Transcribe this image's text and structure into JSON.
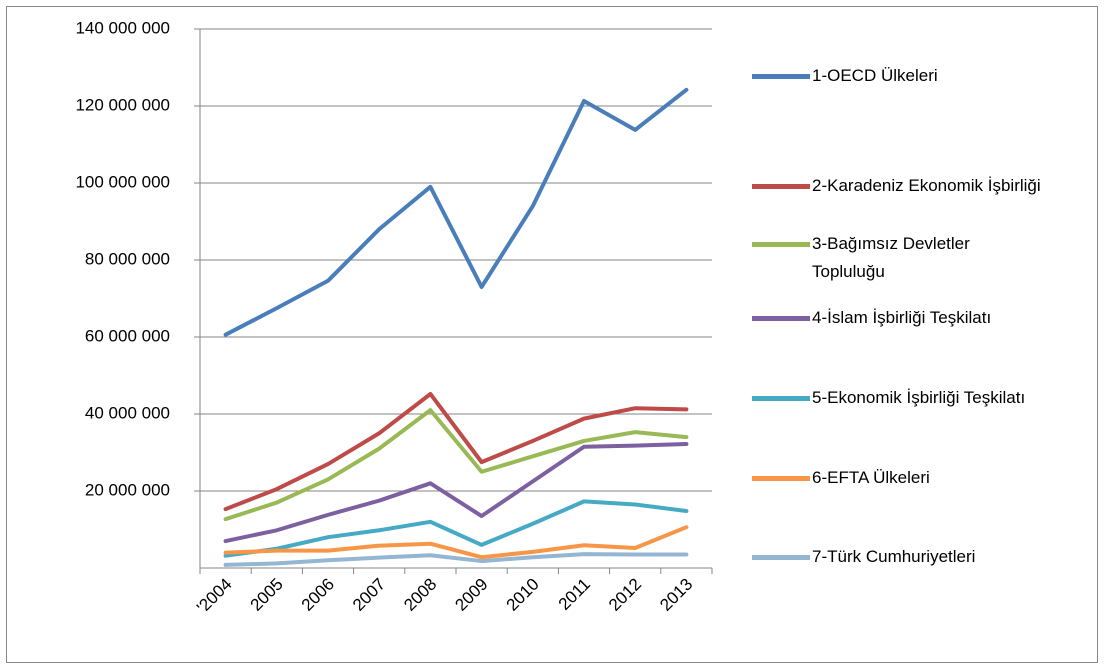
{
  "chart_data": {
    "type": "line",
    "categories": [
      "'2004",
      "2005",
      "2006",
      "2007",
      "2008",
      "2009",
      "2010",
      "2011",
      "2012",
      "2013"
    ],
    "series": [
      {
        "name": "1-OECD Ülkeleri",
        "color": "#4a7ebb",
        "values": [
          60600000,
          67500000,
          74600000,
          88000000,
          99000000,
          73000000,
          94000000,
          121300000,
          113800000,
          124200000
        ]
      },
      {
        "name": "2-Karadeniz Ekonomik İşbirliği",
        "color": "#be4b48",
        "values": [
          15300000,
          20500000,
          27000000,
          35000000,
          45200000,
          27500000,
          33000000,
          38800000,
          41500000,
          41200000
        ]
      },
      {
        "name": "3-Bağımsız Devletler Topluluğu",
        "color": "#98b954",
        "values": [
          12700000,
          17000000,
          23000000,
          31000000,
          41000000,
          25000000,
          29000000,
          33000000,
          35300000,
          34000000
        ]
      },
      {
        "name": "4-İslam İşbirliği Teşkilatı",
        "color": "#7d60a0",
        "values": [
          7000000,
          9800000,
          13800000,
          17500000,
          22000000,
          13500000,
          22500000,
          31500000,
          31800000,
          32200000
        ]
      },
      {
        "name": "5-Ekonomik İşbirliği Teşkilatı",
        "color": "#46aac5",
        "values": [
          3200000,
          5000000,
          8000000,
          9800000,
          12000000,
          6000000,
          11500000,
          17300000,
          16500000,
          14800000
        ]
      },
      {
        "name": "6-EFTA Ülkeleri",
        "color": "#f79646",
        "values": [
          4000000,
          4500000,
          4500000,
          5800000,
          6300000,
          2800000,
          4200000,
          5900000,
          5200000,
          10600000
        ]
      },
      {
        "name": "7-Türk Cumhuriyetleri",
        "color": "#94b6d2",
        "values": [
          800000,
          1200000,
          2000000,
          2700000,
          3300000,
          1800000,
          2800000,
          3600000,
          3500000,
          3500000
        ]
      }
    ],
    "ylim": [
      0,
      140000000
    ],
    "yticks": [
      {
        "value": 20000000,
        "label": "20 000 000"
      },
      {
        "value": 40000000,
        "label": "40 000 000"
      },
      {
        "value": 60000000,
        "label": "60 000 000"
      },
      {
        "value": 80000000,
        "label": "80 000 000"
      },
      {
        "value": 100000000,
        "label": "100 000 000"
      },
      {
        "value": 120000000,
        "label": "120 000 000"
      },
      {
        "value": 140000000,
        "label": "140 000 000"
      }
    ],
    "grid": true,
    "legend": "right"
  }
}
